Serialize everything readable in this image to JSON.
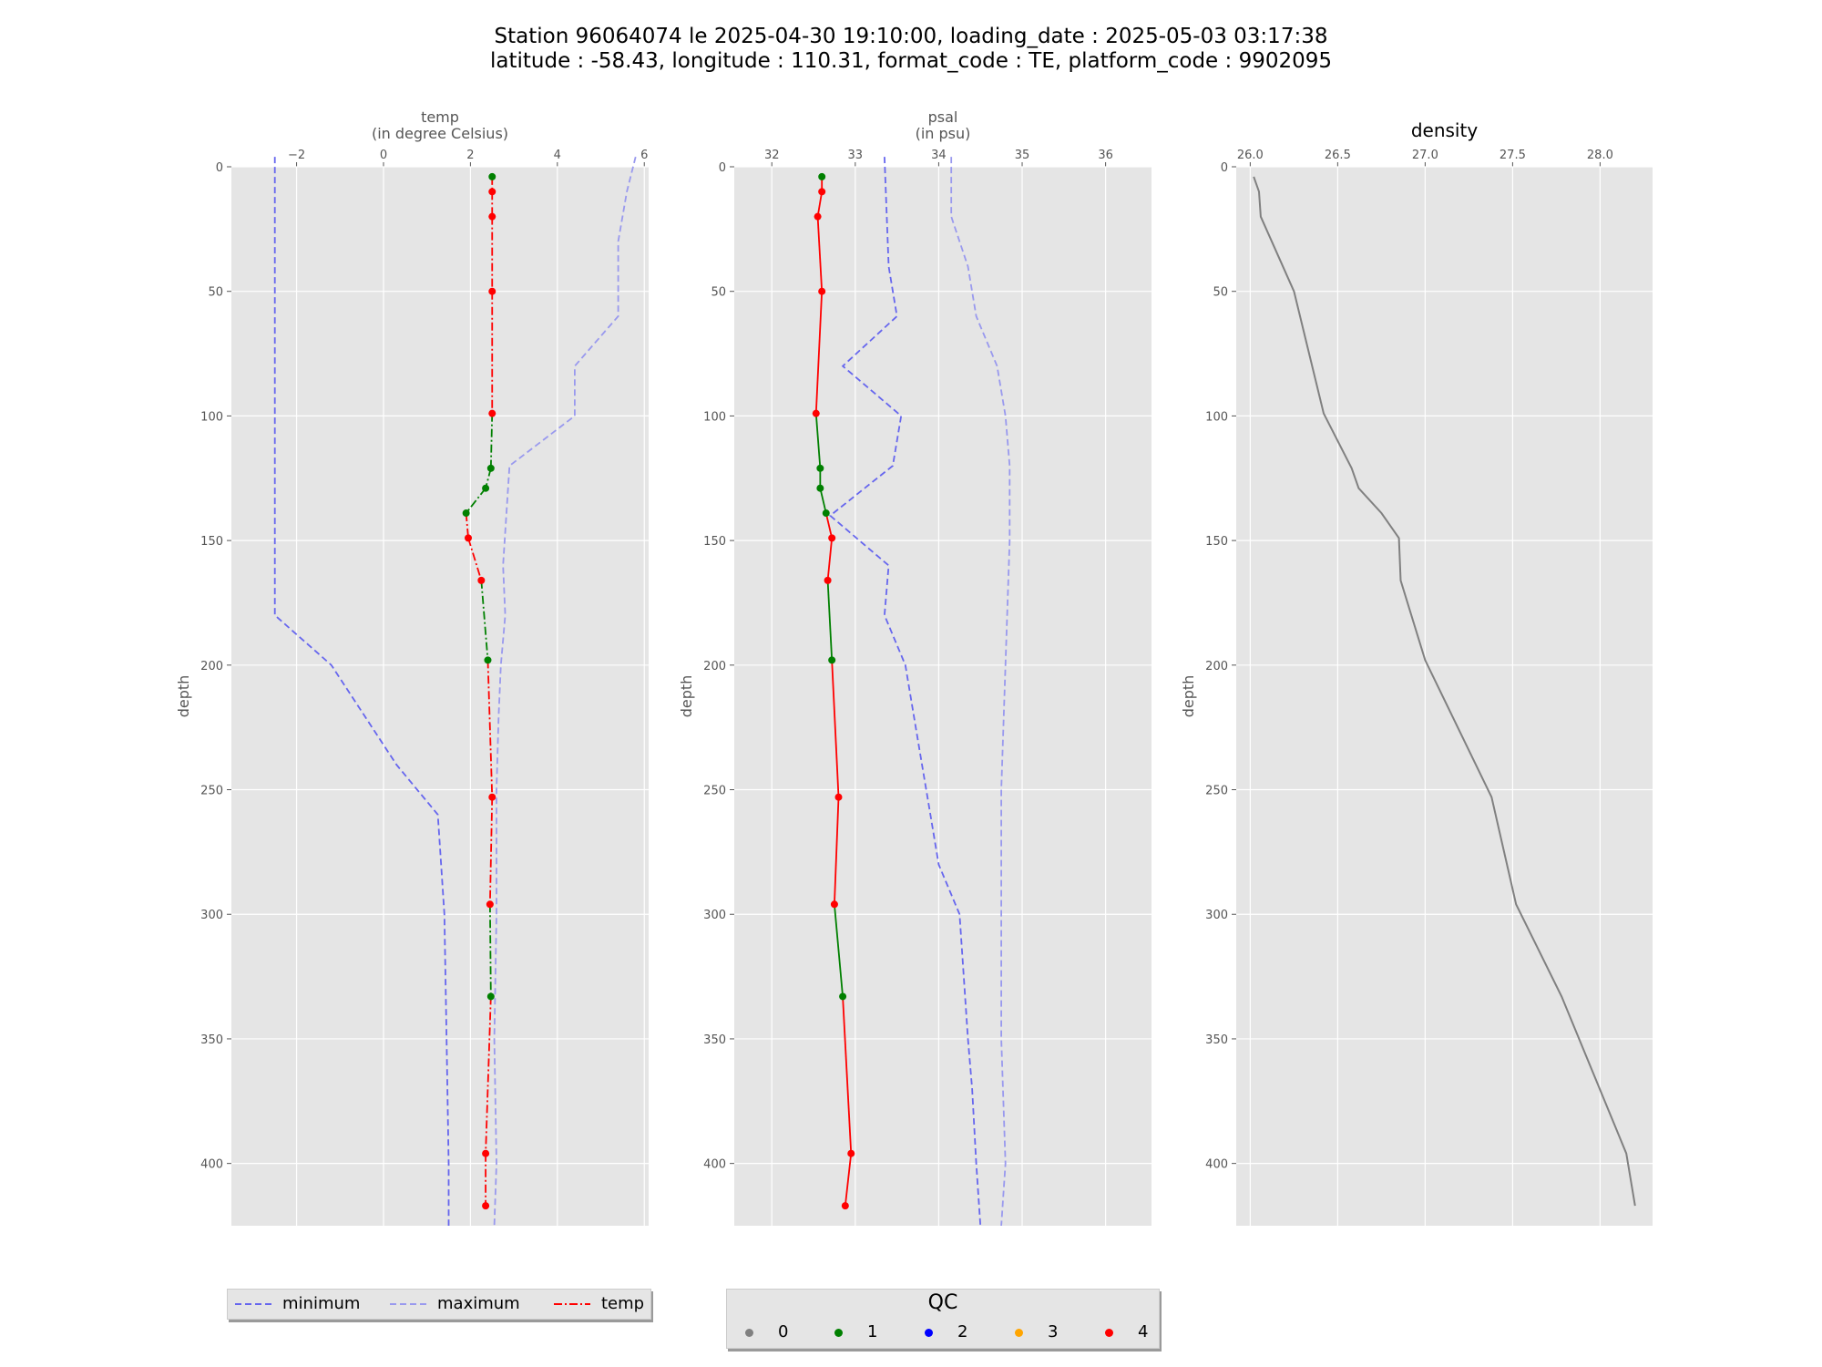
{
  "title": {
    "line1": "Station 96064074 le 2025-04-30 19:10:00, loading_date : 2025-05-03 03:17:38",
    "line2": "latitude : -58.43, longitude : 110.31, format_code : TE, platform_code : 9902095"
  },
  "colors": {
    "panel_bg": "#e5e5e5",
    "minimum": "#6666ee",
    "maximum": "#9999ee",
    "temp_line": "#ff0000",
    "density_line": "#808080",
    "qc_0": "#808080",
    "qc_1": "#008000",
    "qc_2": "#0000ff",
    "qc_3": "#ffa500",
    "qc_4": "#ff0000"
  },
  "legend": {
    "minimum": "minimum",
    "maximum": "maximum",
    "temp": "temp"
  },
  "qc_legend": {
    "title": "QC",
    "items": [
      {
        "label": "0",
        "color": "#808080"
      },
      {
        "label": "1",
        "color": "#008000"
      },
      {
        "label": "2",
        "color": "#0000ff"
      },
      {
        "label": "3",
        "color": "#ffa500"
      },
      {
        "label": "4",
        "color": "#ff0000"
      }
    ]
  },
  "chart_data": [
    {
      "type": "line",
      "title_line1": "temp",
      "title_line2": "(in degree Celsius)",
      "ylabel": "depth",
      "xlim": [
        -3.5,
        6.1
      ],
      "ylim": [
        425,
        0
      ],
      "y_inverted": true,
      "grid": true,
      "x_ticks": [
        -2,
        0,
        2,
        4,
        6
      ],
      "x_tick_labels": [
        "−2",
        "0",
        "2",
        "4",
        "6"
      ],
      "y_ticks": [
        0,
        50,
        100,
        150,
        200,
        250,
        300,
        350,
        400
      ],
      "y_tick_labels": [
        "0",
        "50",
        "100",
        "150",
        "200",
        "250",
        "300",
        "350",
        "400"
      ],
      "series": [
        {
          "name": "minimum",
          "style": "dashed",
          "color": "#6666ee",
          "points": [
            [
              -2.5,
              -4
            ],
            [
              -2.5,
              180
            ],
            [
              -1.2,
              200
            ],
            [
              0.3,
              240
            ],
            [
              1.25,
              260
            ],
            [
              1.4,
              300
            ],
            [
              1.45,
              350
            ],
            [
              1.5,
              400
            ],
            [
              1.5,
              425
            ]
          ]
        },
        {
          "name": "maximum",
          "style": "dashed",
          "color": "#9999ee",
          "points": [
            [
              5.8,
              -4
            ],
            [
              5.6,
              10
            ],
            [
              5.4,
              30
            ],
            [
              5.4,
              60
            ],
            [
              4.4,
              80
            ],
            [
              4.4,
              100
            ],
            [
              2.9,
              120
            ],
            [
              2.75,
              160
            ],
            [
              2.8,
              180
            ],
            [
              2.7,
              200
            ],
            [
              2.65,
              220
            ],
            [
              2.6,
              250
            ],
            [
              2.6,
              300
            ],
            [
              2.55,
              350
            ],
            [
              2.6,
              400
            ],
            [
              2.55,
              425
            ]
          ]
        },
        {
          "name": "temp",
          "style": "dashdot",
          "points": [
            {
              "y": 4,
              "x": 2.5,
              "qc": 1
            },
            {
              "y": 10,
              "x": 2.5,
              "qc": 4
            },
            {
              "y": 20,
              "x": 2.5,
              "qc": 4
            },
            {
              "y": 50,
              "x": 2.5,
              "qc": 4
            },
            {
              "y": 99,
              "x": 2.5,
              "qc": 4
            },
            {
              "y": 121,
              "x": 2.47,
              "qc": 1
            },
            {
              "y": 129,
              "x": 2.35,
              "qc": 1
            },
            {
              "y": 139,
              "x": 1.9,
              "qc": 1
            },
            {
              "y": 149,
              "x": 1.95,
              "qc": 4
            },
            {
              "y": 166,
              "x": 2.25,
              "qc": 4
            },
            {
              "y": 198,
              "x": 2.4,
              "qc": 1
            },
            {
              "y": 253,
              "x": 2.5,
              "qc": 4
            },
            {
              "y": 296,
              "x": 2.45,
              "qc": 4
            },
            {
              "y": 333,
              "x": 2.47,
              "qc": 1
            },
            {
              "y": 396,
              "x": 2.35,
              "qc": 4
            },
            {
              "y": 417,
              "x": 2.35,
              "qc": 4
            }
          ]
        }
      ]
    },
    {
      "type": "line",
      "title_line1": "psal",
      "title_line2": "(in psu)",
      "ylabel": "depth",
      "xlim": [
        31.55,
        36.55
      ],
      "ylim": [
        425,
        0
      ],
      "y_inverted": true,
      "grid": true,
      "x_ticks": [
        32,
        33,
        34,
        35,
        36
      ],
      "x_tick_labels": [
        "32",
        "33",
        "34",
        "35",
        "36"
      ],
      "y_ticks": [
        0,
        50,
        100,
        150,
        200,
        250,
        300,
        350,
        400
      ],
      "y_tick_labels": [
        "0",
        "50",
        "100",
        "150",
        "200",
        "250",
        "300",
        "350",
        "400"
      ],
      "series": [
        {
          "name": "minimum",
          "style": "dashed",
          "color": "#6666ee",
          "points": [
            [
              33.35,
              -4
            ],
            [
              33.4,
              40
            ],
            [
              33.5,
              60
            ],
            [
              32.85,
              80
            ],
            [
              33.55,
              100
            ],
            [
              33.45,
              120
            ],
            [
              32.7,
              140
            ],
            [
              33.4,
              160
            ],
            [
              33.35,
              180
            ],
            [
              33.6,
              200
            ],
            [
              33.75,
              230
            ],
            [
              33.9,
              260
            ],
            [
              34.0,
              280
            ],
            [
              34.25,
              300
            ],
            [
              34.35,
              350
            ],
            [
              34.4,
              370
            ],
            [
              34.45,
              400
            ],
            [
              34.5,
              425
            ]
          ]
        },
        {
          "name": "maximum",
          "style": "dashed",
          "color": "#9999ee",
          "points": [
            [
              34.15,
              -4
            ],
            [
              34.15,
              20
            ],
            [
              34.35,
              40
            ],
            [
              34.45,
              60
            ],
            [
              34.7,
              80
            ],
            [
              34.8,
              100
            ],
            [
              34.85,
              120
            ],
            [
              34.85,
              150
            ],
            [
              34.8,
              200
            ],
            [
              34.75,
              250
            ],
            [
              34.75,
              300
            ],
            [
              34.75,
              350
            ],
            [
              34.8,
              400
            ],
            [
              34.75,
              425
            ]
          ]
        },
        {
          "name": "psal",
          "style": "solid",
          "points": [
            {
              "y": 4,
              "x": 32.6,
              "qc": 1
            },
            {
              "y": 10,
              "x": 32.6,
              "qc": 4
            },
            {
              "y": 20,
              "x": 32.55,
              "qc": 4
            },
            {
              "y": 50,
              "x": 32.6,
              "qc": 4
            },
            {
              "y": 99,
              "x": 32.53,
              "qc": 4
            },
            {
              "y": 121,
              "x": 32.58,
              "qc": 1
            },
            {
              "y": 129,
              "x": 32.58,
              "qc": 1
            },
            {
              "y": 139,
              "x": 32.65,
              "qc": 1
            },
            {
              "y": 149,
              "x": 32.72,
              "qc": 4
            },
            {
              "y": 166,
              "x": 32.67,
              "qc": 4
            },
            {
              "y": 198,
              "x": 32.72,
              "qc": 1
            },
            {
              "y": 253,
              "x": 32.8,
              "qc": 4
            },
            {
              "y": 296,
              "x": 32.75,
              "qc": 4
            },
            {
              "y": 333,
              "x": 32.85,
              "qc": 1
            },
            {
              "y": 396,
              "x": 32.95,
              "qc": 4
            },
            {
              "y": 417,
              "x": 32.88,
              "qc": 4
            }
          ]
        }
      ]
    },
    {
      "type": "line",
      "title_line1": "density",
      "title_line2": "",
      "ylabel": "depth",
      "xlim": [
        25.92,
        28.3
      ],
      "ylim": [
        425,
        0
      ],
      "y_inverted": true,
      "grid": true,
      "x_ticks": [
        26.0,
        26.5,
        27.0,
        27.5,
        28.0
      ],
      "x_tick_labels": [
        "26.0",
        "26.5",
        "27.0",
        "27.5",
        "28.0"
      ],
      "y_ticks": [
        0,
        50,
        100,
        150,
        200,
        250,
        300,
        350,
        400
      ],
      "y_tick_labels": [
        "0",
        "50",
        "100",
        "150",
        "200",
        "250",
        "300",
        "350",
        "400"
      ],
      "series": [
        {
          "name": "density",
          "style": "solid",
          "color": "#808080",
          "points": [
            [
              26.02,
              4
            ],
            [
              26.05,
              10
            ],
            [
              26.06,
              20
            ],
            [
              26.25,
              50
            ],
            [
              26.42,
              99
            ],
            [
              26.58,
              121
            ],
            [
              26.62,
              129
            ],
            [
              26.75,
              139
            ],
            [
              26.85,
              149
            ],
            [
              26.86,
              166
            ],
            [
              27.0,
              198
            ],
            [
              27.38,
              253
            ],
            [
              27.52,
              296
            ],
            [
              27.78,
              333
            ],
            [
              28.15,
              396
            ],
            [
              28.2,
              417
            ]
          ]
        }
      ]
    }
  ]
}
